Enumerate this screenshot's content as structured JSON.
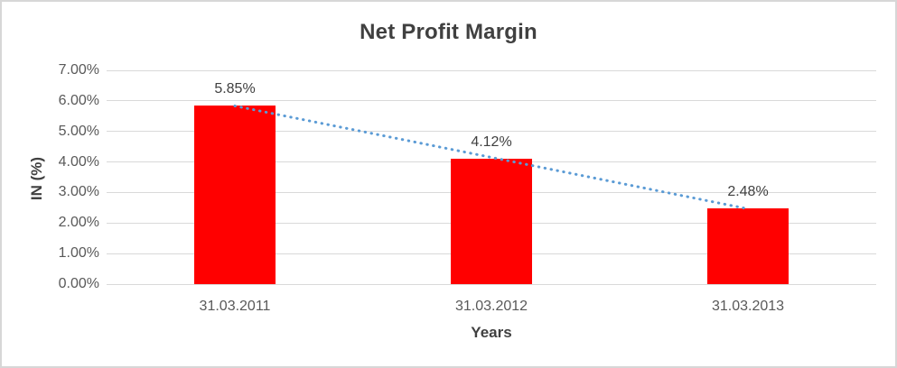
{
  "window": {
    "background": "#FFFFFF",
    "border_color": "#D7D7D7"
  },
  "chart_data": {
    "type": "bar",
    "title": "Net Profit Margin",
    "xlabel": "Years",
    "ylabel": "IN (%)",
    "categories": [
      "31.03.2011",
      "31.03.2012",
      "31.03.2013"
    ],
    "values": [
      5.85,
      4.12,
      2.48
    ],
    "data_labels": [
      "5.85%",
      "4.12%",
      "2.48%"
    ],
    "y_ticks": [
      "0.00%",
      "1.00%",
      "2.00%",
      "3.00%",
      "4.00%",
      "5.00%",
      "6.00%",
      "7.00%"
    ],
    "ylim": [
      0,
      7
    ],
    "grid": true,
    "legend_position": "none",
    "colors": {
      "bar": "#FF0000",
      "gridline": "#D9D9D9",
      "trendline": "#5B9BD5",
      "title_text": "#404040",
      "axis_title_text": "#404040",
      "tick_text": "#595959",
      "data_label_text": "#404040"
    },
    "trendline": {
      "type": "linear",
      "style": "dotted"
    }
  }
}
